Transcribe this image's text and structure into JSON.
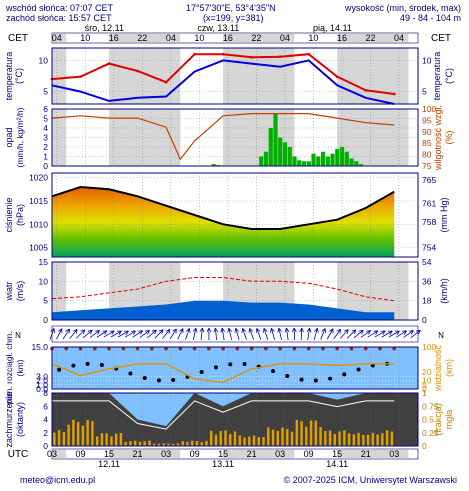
{
  "header": {
    "sunrise": "wschód słońca: 07:07 CET",
    "sunset": "zachód słońca: 15:57 CET",
    "coords": "17°57'30\"E, 53°4'35\"N",
    "grid": "(x=199, y=381)",
    "elev_label": "wysokość (min, środek, max)",
    "elev_values": "49 - 84 - 104 m"
  },
  "footer": {
    "email": "meteo@icm.edu.pl",
    "copyright": "© 2007-2025 ICM, Uniwersytet Warszawski"
  },
  "timezone": {
    "left": "CET",
    "right": "CET",
    "bottom": "UTC"
  },
  "time_axis": {
    "top_hours": [
      "04",
      "10",
      "16",
      "22",
      "04",
      "10",
      "16",
      "22",
      "04",
      "10",
      "16",
      "22",
      "04"
    ],
    "bottom_hours": [
      "03",
      "09",
      "15",
      "21",
      "03",
      "09",
      "15",
      "21",
      "03",
      "09",
      "15",
      "21",
      "03"
    ],
    "top_days": [
      "śro, 12.11",
      "czw, 13.11",
      "pią, 14.11"
    ],
    "bottom_days": [
      "12.11",
      "13.11",
      "14.11"
    ]
  },
  "colors": {
    "frame": "#000080",
    "night": "#b4b4b4",
    "day": "#ffffff",
    "temp": "#e00000",
    "dew": "#0000e0",
    "humidity": "#c04000",
    "precip": "#00b000",
    "pressure_line": "#000000",
    "wind": "#0060d0",
    "gust": "#e00000",
    "visibility": "#e09000",
    "cloud_sky": "#80c0ff",
    "fog": "#ffffff"
  },
  "chart_data": [
    {
      "type": "line",
      "name": "temperature",
      "ylabel": "temperatura",
      "yunit": "(°C)",
      "ylim": [
        3,
        12
      ],
      "yticks": [
        5,
        10
      ],
      "x_hours": [
        0,
        6,
        12,
        18,
        24,
        30,
        36,
        42,
        48,
        54,
        60,
        66,
        72
      ],
      "series": [
        {
          "values": [
            7,
            7.4,
            9.5,
            8.3,
            6.5,
            11,
            11,
            10.5,
            10.6,
            11,
            7.4,
            5.2,
            4.6
          ]
        },
        {
          "values": [
            6,
            5,
            3.5,
            4,
            4.2,
            8.2,
            10,
            9.5,
            9,
            10,
            6,
            4,
            3
          ]
        }
      ]
    },
    {
      "type": "bar",
      "name": "precipitation-humidity",
      "ylabel": "opad",
      "yunit": "(mm/h, kg/m²/h)",
      "ylim": [
        0,
        6
      ],
      "yticks": [
        0,
        1,
        2,
        3,
        4,
        5,
        6
      ],
      "y2label": "wilgotność wzgl.",
      "y2unit": "(%)",
      "y2lim": [
        75,
        100
      ],
      "y2ticks": [
        75,
        80,
        85,
        90,
        95,
        100
      ],
      "x_hours": [
        0,
        6,
        12,
        18,
        24,
        27,
        30,
        36,
        42,
        48,
        54,
        60,
        66,
        72
      ],
      "series": [
        {
          "values": [
            96,
            97,
            96,
            96,
            92,
            78,
            86,
            97,
            98,
            98,
            98,
            96,
            94,
            93
          ]
        }
      ],
      "precip_hours": [
        34,
        35,
        44,
        45,
        46,
        47,
        48,
        49,
        50,
        51,
        52,
        53,
        54,
        55,
        56,
        57,
        58,
        59,
        60,
        61,
        62,
        63,
        64,
        65
      ],
      "precip_values": [
        0.2,
        0.1,
        1.0,
        1.5,
        4.0,
        5.5,
        3.0,
        2.5,
        2.0,
        1.0,
        0.6,
        0.5,
        0.5,
        1.3,
        1.0,
        1.5,
        1.0,
        1.3,
        1.8,
        2.0,
        1.5,
        0.8,
        0.5,
        0.2
      ]
    },
    {
      "type": "area",
      "name": "pressure",
      "ylabel": "ciśnienie",
      "yunit": "(hPa)",
      "ylim": [
        1003,
        1021
      ],
      "yticks": [
        1005,
        1010,
        1015,
        1020
      ],
      "y2label": "",
      "y2unit": "(mm Hg)",
      "y2ticks": [
        754,
        758,
        761,
        765
      ],
      "x_hours": [
        0,
        6,
        12,
        18,
        24,
        30,
        36,
        42,
        48,
        54,
        60,
        66,
        72
      ],
      "series": [
        {
          "values": [
            1016,
            1018,
            1017.5,
            1016,
            1014,
            1012,
            1010,
            1009,
            1009,
            1010,
            1011,
            1013.5,
            1017
          ]
        }
      ]
    },
    {
      "type": "area",
      "name": "wind",
      "ylabel": "wiatr",
      "yunit": "(m/s)",
      "ylim": [
        0,
        15
      ],
      "yticks": [
        0,
        5,
        10,
        15
      ],
      "y2label": "",
      "y2unit": "(km/h)",
      "y2ticks": [
        0,
        18,
        36,
        54
      ],
      "x_hours": [
        0,
        6,
        12,
        18,
        24,
        30,
        36,
        42,
        48,
        54,
        60,
        66,
        72
      ],
      "series": [
        {
          "values": [
            2,
            2.5,
            3,
            3.5,
            4,
            5,
            5,
            4.5,
            4.5,
            4,
            3,
            2,
            2
          ]
        },
        {
          "values": [
            5.5,
            6,
            7,
            8,
            10,
            11,
            11,
            10,
            10,
            9.5,
            8,
            6,
            5
          ]
        }
      ]
    },
    {
      "type": "scatter",
      "name": "clouds-visibility",
      "ylabel": "pion. rozciągł. chm.",
      "yunit": "(km)",
      "ylim": [
        0,
        15
      ],
      "yticks": [
        0.0,
        1.0,
        2.0,
        3.0,
        10,
        15.0
      ],
      "y2label": "widzialność",
      "y2unit": "(km)",
      "y2lim": [
        0,
        100
      ],
      "y2ticks": [
        0,
        5,
        10,
        20,
        100
      ],
      "x_hours": [
        0,
        6,
        12,
        18,
        24,
        30,
        36,
        42,
        48,
        54,
        60,
        66,
        72
      ],
      "series": [
        {
          "values": [
            15,
            8,
            12,
            15,
            15,
            6,
            4,
            12,
            15,
            15,
            14,
            15,
            15
          ]
        }
      ]
    },
    {
      "type": "area",
      "name": "cloud-cover-fog",
      "ylabel": "zachmurzenie",
      "yunit": "(oktanty)",
      "ylim": [
        0,
        8
      ],
      "yticks": [
        0,
        2,
        4,
        6,
        8
      ],
      "y2label": "mgła",
      "y2unit": "(frakcja)",
      "y2lim": [
        0,
        1
      ],
      "y2ticks": [
        0,
        0.25,
        0.5,
        0.75,
        1
      ],
      "x_hours": [
        0,
        6,
        12,
        18,
        24,
        30,
        36,
        42,
        48,
        54,
        60,
        66,
        72
      ],
      "series": [
        {
          "values": [
            8,
            8,
            8,
            4,
            3,
            8,
            6,
            8,
            8,
            8,
            7,
            8,
            8
          ]
        },
        {
          "values": [
            0.3,
            0.5,
            0.25,
            0.1,
            0.05,
            0.1,
            0.3,
            0.2,
            0.35,
            0.5,
            0.3,
            0.25,
            0.3
          ]
        }
      ]
    }
  ]
}
